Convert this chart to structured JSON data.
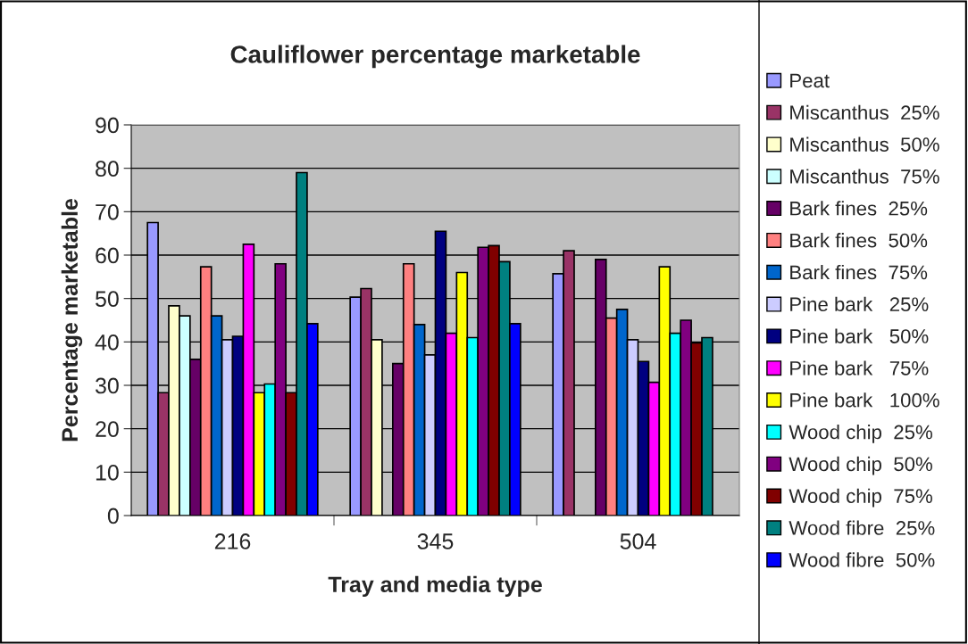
{
  "chart_data": {
    "type": "bar",
    "title": "Cauliflower percentage marketable",
    "xlabel": "Tray and media type",
    "ylabel": "Percentage marketable",
    "categories": [
      "216",
      "345",
      "504"
    ],
    "ylim": [
      0,
      90
    ],
    "yticks": [
      0,
      10,
      20,
      30,
      40,
      50,
      60,
      70,
      80,
      90
    ],
    "grid": "y",
    "legend": "right",
    "series": [
      {
        "name": "Peat",
        "color": "#9999ff",
        "values": [
          67.5,
          50.3,
          55.7
        ]
      },
      {
        "name": "Miscanthus  25%",
        "color": "#993366",
        "values": [
          28.3,
          52.3,
          61
        ]
      },
      {
        "name": "Miscanthus  50%",
        "color": "#ffffcc",
        "values": [
          48.3,
          40.5,
          null
        ]
      },
      {
        "name": "Miscanthus  75%",
        "color": "#ccffff",
        "values": [
          46,
          null,
          null
        ]
      },
      {
        "name": "Bark fines  25%",
        "color": "#660066",
        "values": [
          36,
          35,
          59
        ]
      },
      {
        "name": "Bark fines  50%",
        "color": "#ff8080",
        "values": [
          57.3,
          58,
          45.5
        ]
      },
      {
        "name": "Bark fines  75%",
        "color": "#0066cc",
        "values": [
          46,
          44,
          47.5
        ]
      },
      {
        "name": "Pine bark   25%",
        "color": "#ccccff",
        "values": [
          40.5,
          37,
          40.5
        ]
      },
      {
        "name": "Pine bark   50%",
        "color": "#000080",
        "values": [
          41.3,
          65.5,
          35.5
        ]
      },
      {
        "name": "Pine bark   75%",
        "color": "#ff00ff",
        "values": [
          62.5,
          42,
          30.7
        ]
      },
      {
        "name": "Pine bark   100%",
        "color": "#ffff00",
        "values": [
          28.3,
          56,
          57.3
        ]
      },
      {
        "name": "Wood chip  25%",
        "color": "#00ffff",
        "values": [
          30.3,
          41,
          42
        ]
      },
      {
        "name": "Wood chip  50%",
        "color": "#800080",
        "values": [
          58,
          61.8,
          45
        ]
      },
      {
        "name": "Wood chip  75%",
        "color": "#800000",
        "values": [
          28.3,
          62.2,
          39.8
        ]
      },
      {
        "name": "Wood fibre  25%",
        "color": "#008080",
        "values": [
          79,
          58.5,
          41
        ]
      },
      {
        "name": "Wood fibre  50%",
        "color": "#0000ff",
        "values": [
          44.2,
          44.2,
          null
        ]
      }
    ]
  }
}
